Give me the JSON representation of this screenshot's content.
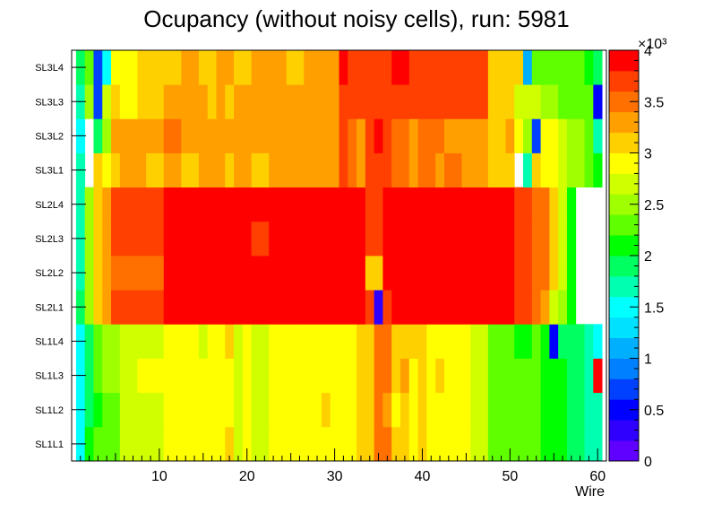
{
  "chart_data": {
    "type": "heatmap",
    "title": "Ocupancy (without noisy cells), run: 5981",
    "xlabel": "Wire",
    "ylabel": "",
    "xlim": [
      0,
      61
    ],
    "x_ticks": [
      "10",
      "20",
      "30",
      "40",
      "50",
      "60"
    ],
    "y_categories": [
      "SL1L1",
      "SL1L2",
      "SL1L3",
      "SL1L4",
      "SL2L1",
      "SL2L2",
      "SL2L3",
      "SL2L4",
      "SL3L1",
      "SL3L2",
      "SL3L3",
      "SL3L4"
    ],
    "zlim": [
      0,
      4000
    ],
    "z_multiplier": "×10³",
    "colorbar_ticks": [
      "0",
      "0.5",
      "1",
      "1.5",
      "2",
      "2.5",
      "3",
      "3.5",
      "4"
    ],
    "note": "Cell values (occupancy counts) approximated from the color scale; row order SL1L1 (bottom) to SL3L4 (top); wires 1..60; null = empty cell.",
    "values": [
      [
        1500,
        2000,
        2200,
        2300,
        2300,
        2600,
        2600,
        2700,
        2700,
        2700,
        2800,
        2800,
        2800,
        2800,
        2800,
        2800,
        2900,
        3000,
        2700,
        2800,
        2600,
        2600,
        2800,
        2900,
        2900,
        2900,
        2900,
        2900,
        2900,
        2900,
        2900,
        2900,
        3000,
        3000,
        3400,
        3400,
        3000,
        3000,
        2900,
        3000,
        2900,
        2900,
        2900,
        2800,
        2800,
        2700,
        2700,
        2200,
        2200,
        2200,
        2200,
        2200,
        2200,
        2100,
        2000,
        2000,
        1900,
        1800,
        1700,
        1700
      ],
      [
        1400,
        1800,
        2000,
        2300,
        2300,
        2600,
        2600,
        2700,
        2700,
        2700,
        2900,
        2900,
        2800,
        2800,
        2800,
        2800,
        2900,
        2900,
        2700,
        2800,
        2600,
        2600,
        2800,
        2900,
        2900,
        2900,
        2900,
        2900,
        3000,
        2900,
        2900,
        2900,
        3000,
        3000,
        3400,
        3300,
        2900,
        3000,
        2900,
        3100,
        2900,
        2900,
        2900,
        2800,
        2800,
        2700,
        2700,
        2200,
        2200,
        2200,
        2200,
        2200,
        2200,
        2100,
        2000,
        2000,
        1900,
        1800,
        1700,
        1600
      ],
      [
        1500,
        1900,
        2200,
        2400,
        2500,
        2600,
        2700,
        2800,
        2800,
        2800,
        2900,
        2900,
        2900,
        2900,
        2800,
        2800,
        2900,
        2900,
        2700,
        2800,
        2600,
        2600,
        2800,
        2900,
        2900,
        2900,
        2900,
        2900,
        2900,
        2900,
        2900,
        2900,
        3000,
        3000,
        3400,
        3400,
        3000,
        3200,
        2900,
        3100,
        2900,
        3000,
        2900,
        2800,
        2800,
        2700,
        2700,
        2200,
        2200,
        2200,
        2200,
        2200,
        2200,
        2100,
        2000,
        2000,
        1900,
        1800,
        1700,
        3800
      ],
      [
        1500,
        1800,
        2300,
        2400,
        2500,
        2600,
        2700,
        2600,
        2600,
        2600,
        2900,
        2900,
        2900,
        2900,
        2700,
        2800,
        2900,
        3000,
        2700,
        2800,
        2600,
        2600,
        2800,
        2900,
        2900,
        2900,
        2900,
        2900,
        2900,
        2900,
        2900,
        2900,
        3000,
        3000,
        3400,
        3400,
        3000,
        3000,
        3000,
        3000,
        2900,
        2900,
        2900,
        2800,
        2800,
        2700,
        2700,
        2300,
        2300,
        2200,
        2100,
        2100,
        2200,
        2100,
        400,
        1900,
        1900,
        1800,
        1700,
        1400
      ],
      [
        1800,
        2400,
        3000,
        3200,
        3600,
        3600,
        3600,
        3600,
        3600,
        3600,
        3900,
        3900,
        3900,
        3900,
        3900,
        3900,
        3900,
        3900,
        3900,
        3900,
        3800,
        3800,
        4000,
        4000,
        4000,
        3800,
        3800,
        3800,
        3800,
        3800,
        3800,
        3800,
        3800,
        3700,
        300,
        3700,
        3800,
        3800,
        3800,
        3800,
        3900,
        3900,
        3800,
        3800,
        3800,
        3800,
        3800,
        3800,
        3800,
        3800,
        3700,
        3600,
        3400,
        3300,
        2600,
        2400,
        2000,
        null,
        null,
        null
      ],
      [
        1600,
        2400,
        3000,
        3200,
        3500,
        3500,
        3500,
        3500,
        3500,
        3500,
        3900,
        3900,
        3900,
        3900,
        3900,
        3900,
        3900,
        4000,
        4000,
        4000,
        3800,
        3800,
        3800,
        3800,
        3800,
        3800,
        3800,
        3800,
        3800,
        3800,
        3800,
        3800,
        3800,
        3000,
        3000,
        3800,
        3800,
        3800,
        3800,
        3800,
        3800,
        3800,
        3800,
        3800,
        3800,
        3800,
        3800,
        3800,
        3800,
        3800,
        3700,
        3600,
        3500,
        3400,
        3000,
        2700,
        2100,
        null,
        null,
        null
      ],
      [
        1600,
        2400,
        3100,
        3300,
        3600,
        3600,
        3600,
        3600,
        3600,
        3600,
        3900,
        3900,
        3900,
        3900,
        3900,
        3900,
        3900,
        4000,
        4000,
        3900,
        3700,
        3700,
        3900,
        3900,
        3900,
        3900,
        3900,
        3900,
        3900,
        3900,
        3900,
        3900,
        3900,
        3600,
        3600,
        3900,
        3900,
        3900,
        3900,
        3800,
        3800,
        3800,
        3800,
        3800,
        3800,
        3800,
        3800,
        3800,
        3800,
        3800,
        3700,
        3600,
        3500,
        3400,
        3000,
        2700,
        2000,
        null,
        null,
        null
      ],
      [
        1700,
        2400,
        3100,
        3300,
        3600,
        3600,
        3600,
        3600,
        3600,
        3600,
        3900,
        3900,
        3900,
        3900,
        3900,
        3900,
        3900,
        4000,
        4000,
        4000,
        3900,
        3800,
        3900,
        4000,
        3900,
        4000,
        3900,
        4000,
        3800,
        3800,
        3900,
        3900,
        3900,
        3600,
        3600,
        3900,
        3900,
        3900,
        3900,
        3800,
        3800,
        3800,
        3800,
        3800,
        3800,
        3800,
        3800,
        3800,
        3800,
        3800,
        3700,
        3600,
        3500,
        3400,
        3000,
        2700,
        2000,
        null,
        null,
        null
      ],
      [
        1600,
        null,
        3000,
        2800,
        3000,
        3300,
        3300,
        3300,
        3000,
        3000,
        3300,
        3300,
        3000,
        3000,
        3300,
        3200,
        3300,
        3000,
        3300,
        3300,
        3000,
        3000,
        3300,
        3300,
        3300,
        3300,
        3300,
        3300,
        3300,
        3300,
        3600,
        3400,
        3300,
        3600,
        3600,
        3600,
        3400,
        3400,
        3300,
        3400,
        3400,
        3300,
        3400,
        3400,
        3300,
        3300,
        3300,
        3000,
        3000,
        3000,
        null,
        1600,
        3000,
        2800,
        2800,
        2700,
        2500,
        2500,
        2300,
        2100
      ],
      [
        1500,
        null,
        1800,
        2500,
        3300,
        3300,
        3300,
        3300,
        3200,
        3200,
        3400,
        3400,
        3300,
        3300,
        3300,
        3200,
        3300,
        3300,
        3300,
        3300,
        3300,
        3300,
        3300,
        3300,
        3300,
        3200,
        3300,
        3300,
        3300,
        3300,
        3600,
        3400,
        3300,
        3600,
        3900,
        3600,
        3400,
        3400,
        3300,
        3400,
        3400,
        3400,
        3300,
        3300,
        3300,
        3300,
        3300,
        3000,
        3000,
        3300,
        2800,
        2400,
        700,
        2800,
        2800,
        2700,
        2500,
        2500,
        2300,
        1600
      ],
      [
        1600,
        2400,
        700,
        2600,
        3000,
        2900,
        2800,
        3000,
        3000,
        3000,
        3300,
        3300,
        3300,
        3300,
        3300,
        3000,
        3300,
        3000,
        3300,
        3300,
        3300,
        3300,
        3300,
        3300,
        3300,
        3300,
        3300,
        3300,
        3300,
        3300,
        3600,
        3600,
        3600,
        3600,
        3600,
        3600,
        3600,
        3600,
        3600,
        3600,
        3600,
        3600,
        3600,
        3600,
        3600,
        3600,
        3600,
        3000,
        3000,
        3000,
        2700,
        2700,
        2600,
        2400,
        2400,
        2300,
        2300,
        2300,
        2300,
        400
      ],
      [
        1800,
        2300,
        600,
        1500,
        2900,
        2800,
        2800,
        3000,
        3000,
        3000,
        3000,
        3000,
        3300,
        3300,
        3000,
        3000,
        3300,
        3300,
        3000,
        3000,
        3300,
        3300,
        3300,
        3300,
        3000,
        3000,
        3300,
        3300,
        3300,
        3300,
        4000,
        3600,
        3600,
        3600,
        3600,
        3600,
        3800,
        3800,
        3600,
        3600,
        3600,
        3600,
        3600,
        3600,
        3600,
        3600,
        3600,
        3000,
        3000,
        3000,
        3000,
        1000,
        2300,
        2300,
        2300,
        2300,
        2300,
        2300,
        2100,
        1800
      ]
    ]
  }
}
